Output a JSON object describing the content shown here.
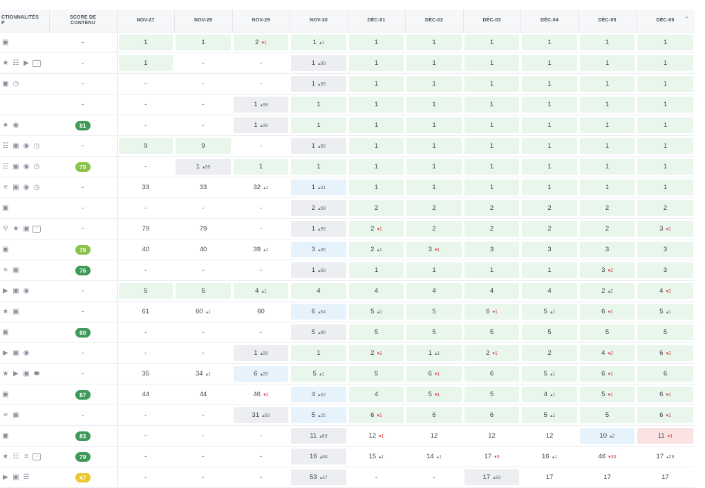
{
  "header": {
    "features_label": "CTIONNALITÉS\nP",
    "score_label": "SCORE DE\nCONTENU",
    "dates": [
      "NOV-27",
      "NOV-28",
      "NOV-29",
      "NOV-30",
      "DÉC-01",
      "DÉC-02",
      "DÉC-03",
      "DÉC-04",
      "DÉC-05",
      "DÉC-06"
    ],
    "sort_icon": "chevron-up-icon"
  },
  "colors": {
    "score_dark_green": "#3f9a5a",
    "score_light_green": "#8bc34a",
    "score_yellow": "#e9c832",
    "cell_green": "#e8f6ec",
    "cell_grey": "#eceef1",
    "cell_blue": "#e6f3fc",
    "cell_red": "#fbe3e3"
  },
  "rows": [
    {
      "features": [
        "image-icon"
      ],
      "score": "-",
      "cells": [
        {
          "v": "1",
          "bg": "green"
        },
        {
          "v": "1",
          "bg": "green"
        },
        {
          "v": "2",
          "d": "1",
          "dir": "down",
          "bg": "green"
        },
        {
          "v": "1",
          "d": "1",
          "dir": "up",
          "bg": "green"
        },
        {
          "v": "1",
          "bg": "green"
        },
        {
          "v": "1",
          "bg": "green"
        },
        {
          "v": "1",
          "bg": "green"
        },
        {
          "v": "1",
          "bg": "green"
        },
        {
          "v": "1",
          "bg": "green"
        },
        {
          "v": "1",
          "bg": "green"
        }
      ]
    },
    {
      "features": [
        "star-icon",
        "list-icon",
        "video-icon",
        "more-icon"
      ],
      "score": "-",
      "cells": [
        {
          "v": "1",
          "bg": "green"
        },
        {
          "v": "-"
        },
        {
          "v": "-"
        },
        {
          "v": "1",
          "d": "99",
          "dir": "up",
          "bg": "grey"
        },
        {
          "v": "1",
          "bg": "green"
        },
        {
          "v": "1",
          "bg": "green"
        },
        {
          "v": "1",
          "bg": "green"
        },
        {
          "v": "1",
          "bg": "green"
        },
        {
          "v": "1",
          "bg": "green"
        },
        {
          "v": "1",
          "bg": "green"
        }
      ]
    },
    {
      "features": [
        "image-icon",
        "clock-icon"
      ],
      "score": "-",
      "cells": [
        {
          "v": "-"
        },
        {
          "v": "-"
        },
        {
          "v": "-"
        },
        {
          "v": "1",
          "d": "99",
          "dir": "up",
          "bg": "grey"
        },
        {
          "v": "1",
          "bg": "green"
        },
        {
          "v": "1",
          "bg": "green"
        },
        {
          "v": "1",
          "bg": "green"
        },
        {
          "v": "1",
          "bg": "green"
        },
        {
          "v": "1",
          "bg": "green"
        },
        {
          "v": "1",
          "bg": "green"
        }
      ]
    },
    {
      "features": [],
      "score": "-",
      "cells": [
        {
          "v": "-"
        },
        {
          "v": "-"
        },
        {
          "v": "1",
          "d": "99",
          "dir": "up",
          "bg": "grey"
        },
        {
          "v": "1",
          "bg": "green"
        },
        {
          "v": "1",
          "bg": "green"
        },
        {
          "v": "1",
          "bg": "green"
        },
        {
          "v": "1",
          "bg": "green"
        },
        {
          "v": "1",
          "bg": "green"
        },
        {
          "v": "1",
          "bg": "green"
        },
        {
          "v": "1",
          "bg": "green"
        }
      ]
    },
    {
      "features": [
        "star-icon",
        "globe-icon"
      ],
      "score": "81",
      "score_color": "dark",
      "cells": [
        {
          "v": "-"
        },
        {
          "v": "-"
        },
        {
          "v": "1",
          "d": "99",
          "dir": "up",
          "bg": "grey"
        },
        {
          "v": "1",
          "bg": "green"
        },
        {
          "v": "1",
          "bg": "green"
        },
        {
          "v": "1",
          "bg": "green"
        },
        {
          "v": "1",
          "bg": "green"
        },
        {
          "v": "1",
          "bg": "green"
        },
        {
          "v": "1",
          "bg": "green"
        },
        {
          "v": "1",
          "bg": "green"
        }
      ]
    },
    {
      "features": [
        "list-icon",
        "image-icon",
        "globe-icon",
        "clock-icon"
      ],
      "score": "-",
      "cells": [
        {
          "v": "9",
          "bg": "green"
        },
        {
          "v": "9",
          "bg": "green"
        },
        {
          "v": "-"
        },
        {
          "v": "1",
          "d": "99",
          "dir": "up",
          "bg": "grey"
        },
        {
          "v": "1",
          "bg": "green"
        },
        {
          "v": "1",
          "bg": "green"
        },
        {
          "v": "1",
          "bg": "green"
        },
        {
          "v": "1",
          "bg": "green"
        },
        {
          "v": "1",
          "bg": "green"
        },
        {
          "v": "1",
          "bg": "green"
        }
      ]
    },
    {
      "features": [
        "list-icon",
        "image-icon",
        "globe-icon",
        "clock-icon"
      ],
      "score": "75",
      "score_color": "light",
      "cells": [
        {
          "v": "-"
        },
        {
          "v": "1",
          "d": "99",
          "dir": "up",
          "bg": "grey"
        },
        {
          "v": "1",
          "bg": "green"
        },
        {
          "v": "1",
          "bg": "green"
        },
        {
          "v": "1",
          "bg": "green"
        },
        {
          "v": "1",
          "bg": "green"
        },
        {
          "v": "1",
          "bg": "green"
        },
        {
          "v": "1",
          "bg": "green"
        },
        {
          "v": "1",
          "bg": "green"
        },
        {
          "v": "1",
          "bg": "green"
        }
      ]
    },
    {
      "features": [
        "lines-icon",
        "image-icon",
        "globe-icon",
        "clock-icon"
      ],
      "score": "-",
      "cells": [
        {
          "v": "33"
        },
        {
          "v": "33"
        },
        {
          "v": "32",
          "d": "1",
          "dir": "up"
        },
        {
          "v": "1",
          "d": "31",
          "dir": "up",
          "bg": "blue"
        },
        {
          "v": "1",
          "bg": "green"
        },
        {
          "v": "1",
          "bg": "green"
        },
        {
          "v": "1",
          "bg": "green"
        },
        {
          "v": "1",
          "bg": "green"
        },
        {
          "v": "1",
          "bg": "green"
        },
        {
          "v": "1",
          "bg": "green"
        }
      ]
    },
    {
      "features": [
        "image-icon"
      ],
      "score": "-",
      "cells": [
        {
          "v": "-"
        },
        {
          "v": "-"
        },
        {
          "v": "-"
        },
        {
          "v": "2",
          "d": "98",
          "dir": "up",
          "bg": "grey"
        },
        {
          "v": "2",
          "bg": "green"
        },
        {
          "v": "2",
          "bg": "green"
        },
        {
          "v": "2",
          "bg": "green"
        },
        {
          "v": "2",
          "bg": "green"
        },
        {
          "v": "2",
          "bg": "green"
        },
        {
          "v": "2",
          "bg": "green"
        }
      ]
    },
    {
      "features": [
        "pin-icon",
        "star-icon",
        "image-icon",
        "more-icon"
      ],
      "score": "-",
      "cells": [
        {
          "v": "79"
        },
        {
          "v": "79"
        },
        {
          "v": "-"
        },
        {
          "v": "1",
          "d": "99",
          "dir": "up",
          "bg": "grey"
        },
        {
          "v": "2",
          "d": "1",
          "dir": "down",
          "bg": "green"
        },
        {
          "v": "2",
          "bg": "green"
        },
        {
          "v": "2",
          "bg": "green"
        },
        {
          "v": "2",
          "bg": "green"
        },
        {
          "v": "2",
          "bg": "green"
        },
        {
          "v": "3",
          "d": "1",
          "dir": "down",
          "bg": "green"
        }
      ]
    },
    {
      "features": [
        "image-icon"
      ],
      "score": "75",
      "score_color": "light",
      "cells": [
        {
          "v": "40"
        },
        {
          "v": "40"
        },
        {
          "v": "39",
          "d": "1",
          "dir": "up"
        },
        {
          "v": "3",
          "d": "36",
          "dir": "up",
          "bg": "blue"
        },
        {
          "v": "2",
          "d": "1",
          "dir": "up",
          "bg": "green"
        },
        {
          "v": "3",
          "d": "1",
          "dir": "down",
          "bg": "green"
        },
        {
          "v": "3",
          "bg": "green"
        },
        {
          "v": "3",
          "bg": "green"
        },
        {
          "v": "3",
          "bg": "green"
        },
        {
          "v": "3",
          "bg": "green"
        }
      ]
    },
    {
      "features": [
        "lines-icon",
        "image-icon"
      ],
      "score": "76",
      "score_color": "dark",
      "cells": [
        {
          "v": "-"
        },
        {
          "v": "-"
        },
        {
          "v": "-"
        },
        {
          "v": "1",
          "d": "99",
          "dir": "up",
          "bg": "grey"
        },
        {
          "v": "1",
          "bg": "green"
        },
        {
          "v": "1",
          "bg": "green"
        },
        {
          "v": "1",
          "bg": "green"
        },
        {
          "v": "1",
          "bg": "green"
        },
        {
          "v": "3",
          "d": "2",
          "dir": "down",
          "bg": "green"
        },
        {
          "v": "3",
          "bg": "green"
        }
      ]
    },
    {
      "features": [
        "video-icon",
        "image-icon",
        "globe-icon"
      ],
      "score": "-",
      "cells": [
        {
          "v": "5",
          "bg": "green"
        },
        {
          "v": "5",
          "bg": "green"
        },
        {
          "v": "4",
          "d": "1",
          "dir": "up",
          "bg": "green"
        },
        {
          "v": "4",
          "bg": "green"
        },
        {
          "v": "4",
          "bg": "green"
        },
        {
          "v": "4",
          "bg": "green"
        },
        {
          "v": "4",
          "bg": "green"
        },
        {
          "v": "4",
          "bg": "green"
        },
        {
          "v": "2",
          "d": "2",
          "dir": "up",
          "bg": "green"
        },
        {
          "v": "4",
          "d": "2",
          "dir": "down",
          "bg": "green"
        }
      ]
    },
    {
      "features": [
        "star-icon",
        "image-icon"
      ],
      "score": "-",
      "cells": [
        {
          "v": "61"
        },
        {
          "v": "60",
          "d": "1",
          "dir": "up"
        },
        {
          "v": "60"
        },
        {
          "v": "6",
          "d": "54",
          "dir": "up",
          "bg": "blue"
        },
        {
          "v": "5",
          "d": "1",
          "dir": "up",
          "bg": "green"
        },
        {
          "v": "5",
          "bg": "green"
        },
        {
          "v": "6",
          "d": "1",
          "dir": "down",
          "bg": "green"
        },
        {
          "v": "5",
          "d": "1",
          "dir": "up",
          "bg": "green"
        },
        {
          "v": "6",
          "d": "1",
          "dir": "down",
          "bg": "green"
        },
        {
          "v": "5",
          "d": "1",
          "dir": "up",
          "bg": "green"
        }
      ]
    },
    {
      "features": [
        "image-icon"
      ],
      "score": "80",
      "score_color": "dark",
      "cells": [
        {
          "v": "-"
        },
        {
          "v": "-"
        },
        {
          "v": "-"
        },
        {
          "v": "5",
          "d": "95",
          "dir": "up",
          "bg": "grey"
        },
        {
          "v": "5",
          "bg": "green"
        },
        {
          "v": "5",
          "bg": "green"
        },
        {
          "v": "5",
          "bg": "green"
        },
        {
          "v": "5",
          "bg": "green"
        },
        {
          "v": "5",
          "bg": "green"
        },
        {
          "v": "5",
          "bg": "green"
        }
      ]
    },
    {
      "features": [
        "video-icon",
        "image-icon",
        "globe-icon"
      ],
      "score": "-",
      "cells": [
        {
          "v": "-"
        },
        {
          "v": "-"
        },
        {
          "v": "1",
          "d": "99",
          "dir": "up",
          "bg": "grey"
        },
        {
          "v": "1",
          "bg": "green"
        },
        {
          "v": "2",
          "d": "1",
          "dir": "down",
          "bg": "green"
        },
        {
          "v": "1",
          "d": "1",
          "dir": "up",
          "bg": "green"
        },
        {
          "v": "2",
          "d": "1",
          "dir": "down",
          "bg": "green"
        },
        {
          "v": "2",
          "bg": "green"
        },
        {
          "v": "4",
          "d": "2",
          "dir": "down",
          "bg": "green"
        },
        {
          "v": "6",
          "d": "2",
          "dir": "down",
          "bg": "green"
        }
      ]
    },
    {
      "features": [
        "star-icon",
        "video-icon",
        "image-icon",
        "toggle-icon"
      ],
      "score": "-",
      "cells": [
        {
          "v": "35"
        },
        {
          "v": "34",
          "d": "1",
          "dir": "up"
        },
        {
          "v": "6",
          "d": "28",
          "dir": "up",
          "bg": "blue"
        },
        {
          "v": "5",
          "d": "1",
          "dir": "up",
          "bg": "green"
        },
        {
          "v": "5",
          "bg": "green"
        },
        {
          "v": "6",
          "d": "1",
          "dir": "down",
          "bg": "green"
        },
        {
          "v": "6",
          "bg": "green"
        },
        {
          "v": "5",
          "d": "1",
          "dir": "up",
          "bg": "green"
        },
        {
          "v": "6",
          "d": "1",
          "dir": "down",
          "bg": "green"
        },
        {
          "v": "6",
          "bg": "green"
        }
      ]
    },
    {
      "features": [
        "image-icon"
      ],
      "score": "87",
      "score_color": "dark",
      "cells": [
        {
          "v": "44"
        },
        {
          "v": "44"
        },
        {
          "v": "46",
          "d": "2",
          "dir": "down"
        },
        {
          "v": "4",
          "d": "42",
          "dir": "up",
          "bg": "blue"
        },
        {
          "v": "4",
          "bg": "green"
        },
        {
          "v": "5",
          "d": "1",
          "dir": "down",
          "bg": "green"
        },
        {
          "v": "5",
          "bg": "green"
        },
        {
          "v": "4",
          "d": "1",
          "dir": "up",
          "bg": "green"
        },
        {
          "v": "5",
          "d": "1",
          "dir": "down",
          "bg": "green"
        },
        {
          "v": "6",
          "d": "1",
          "dir": "down",
          "bg": "green"
        }
      ]
    },
    {
      "features": [
        "lines-icon",
        "image-icon"
      ],
      "score": "-",
      "cells": [
        {
          "v": "-"
        },
        {
          "v": "-"
        },
        {
          "v": "31",
          "d": "69",
          "dir": "up",
          "bg": "grey"
        },
        {
          "v": "5",
          "d": "26",
          "dir": "up",
          "bg": "blue"
        },
        {
          "v": "6",
          "d": "1",
          "dir": "down",
          "bg": "green"
        },
        {
          "v": "6",
          "bg": "green"
        },
        {
          "v": "6",
          "bg": "green"
        },
        {
          "v": "5",
          "d": "1",
          "dir": "up",
          "bg": "green"
        },
        {
          "v": "5",
          "bg": "green"
        },
        {
          "v": "6",
          "d": "1",
          "dir": "down",
          "bg": "green"
        }
      ]
    },
    {
      "features": [
        "image-icon"
      ],
      "score": "83",
      "score_color": "dark",
      "cells": [
        {
          "v": "-"
        },
        {
          "v": "-"
        },
        {
          "v": "-"
        },
        {
          "v": "11",
          "d": "89",
          "dir": "up",
          "bg": "grey"
        },
        {
          "v": "12",
          "d": "1",
          "dir": "down"
        },
        {
          "v": "12"
        },
        {
          "v": "12"
        },
        {
          "v": "12"
        },
        {
          "v": "10",
          "d": "2",
          "dir": "up",
          "bg": "blue"
        },
        {
          "v": "11",
          "d": "1",
          "dir": "down",
          "bg": "red"
        }
      ]
    },
    {
      "features": [
        "star-icon",
        "list-icon",
        "lines-icon",
        "more-icon"
      ],
      "score": "79",
      "score_color": "dark",
      "cells": [
        {
          "v": "-"
        },
        {
          "v": "-"
        },
        {
          "v": "-"
        },
        {
          "v": "16",
          "d": "84",
          "dir": "up",
          "bg": "grey"
        },
        {
          "v": "15",
          "d": "1",
          "dir": "up"
        },
        {
          "v": "14",
          "d": "1",
          "dir": "up"
        },
        {
          "v": "17",
          "d": "3",
          "dir": "down"
        },
        {
          "v": "16",
          "d": "1",
          "dir": "up"
        },
        {
          "v": "46",
          "d": "30",
          "dir": "down"
        },
        {
          "v": "17",
          "d": "29",
          "dir": "up"
        }
      ]
    },
    {
      "features": [
        "video-icon",
        "image-icon",
        "sort-icon"
      ],
      "score": "47",
      "score_color": "yellow",
      "cells": [
        {
          "v": "-"
        },
        {
          "v": "-"
        },
        {
          "v": "-"
        },
        {
          "v": "53",
          "d": "47",
          "dir": "up",
          "bg": "grey"
        },
        {
          "v": "-"
        },
        {
          "v": "-"
        },
        {
          "v": "17",
          "d": "83",
          "dir": "up",
          "bg": "grey"
        },
        {
          "v": "17"
        },
        {
          "v": "17"
        },
        {
          "v": "17"
        }
      ]
    }
  ]
}
